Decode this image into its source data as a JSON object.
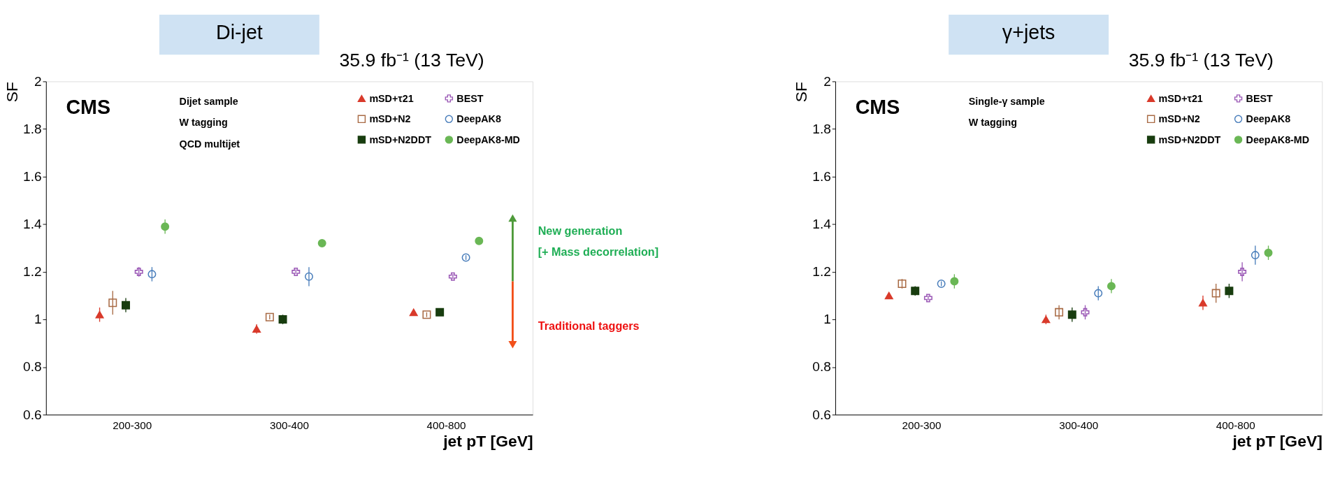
{
  "chart_data": [
    {
      "type": "scatter",
      "title": "Di-jet",
      "subtitle": "35.9 fb⁻¹ (13 TeV)",
      "xlabel": "jet pT [GeV]",
      "ylabel": "SF",
      "categories": [
        "200-300",
        "300-400",
        "400-800"
      ],
      "series": [
        {
          "name": "mSD+τ21",
          "color": "#d93a2b",
          "marker": "triangle",
          "values": [
            1.02,
            0.96,
            1.03
          ],
          "errors": [
            0.03,
            0.02,
            0.01
          ]
        },
        {
          "name": "mSD+N2",
          "color": "#a86a44",
          "marker": "square",
          "values": [
            1.07,
            1.01,
            1.02
          ],
          "errors": [
            0.05,
            0.01,
            0.01
          ]
        },
        {
          "name": "mSD+N2DDT",
          "color": "#183d0f",
          "marker": "square",
          "values": [
            1.06,
            1.0,
            1.03
          ],
          "errors": [
            0.03,
            0.02,
            0.01
          ]
        },
        {
          "name": "BEST",
          "color": "#9b59b6",
          "marker": "cross",
          "values": [
            1.2,
            1.2,
            1.18
          ],
          "errors": [
            0.02,
            0.01,
            0.01
          ]
        },
        {
          "name": "DeepAK8",
          "color": "#4a7ebb",
          "marker": "circle",
          "values": [
            1.19,
            1.18,
            1.26
          ],
          "errors": [
            0.03,
            0.04,
            0.01
          ]
        },
        {
          "name": "DeepAK8-MD",
          "color": "#6ab755",
          "marker": "circle",
          "values": [
            1.39,
            1.32,
            1.33
          ],
          "errors": [
            0.03,
            0.01,
            0.01
          ]
        }
      ],
      "ylim": [
        0.6,
        2
      ],
      "yticks": [
        0.6,
        0.8,
        1,
        1.2,
        1.4,
        1.6,
        1.8,
        2
      ],
      "grid": false,
      "legend": "top right",
      "annotations": [
        "CMS",
        "Dijet sample",
        "W tagging",
        "QCD multijet",
        "New generation",
        "[+ Mass decorrelation]",
        "Traditional taggers"
      ]
    },
    {
      "type": "scatter",
      "title": "γ+jets",
      "subtitle": "35.9 fb⁻¹ (13 TeV)",
      "xlabel": "jet pT [GeV]",
      "ylabel": "SF",
      "categories": [
        "200-300",
        "300-400",
        "400-800"
      ],
      "series": [
        {
          "name": "mSD+τ21",
          "color": "#d93a2b",
          "marker": "triangle",
          "values": [
            1.1,
            1.0,
            1.07
          ],
          "errors": [
            0.01,
            0.02,
            0.03
          ]
        },
        {
          "name": "mSD+N2",
          "color": "#a86a44",
          "marker": "square",
          "values": [
            1.15,
            1.03,
            1.11
          ],
          "errors": [
            0.02,
            0.03,
            0.04
          ]
        },
        {
          "name": "mSD+N2DDT",
          "color": "#183d0f",
          "marker": "square",
          "values": [
            1.12,
            1.02,
            1.12
          ],
          "errors": [
            0.02,
            0.03,
            0.03
          ]
        },
        {
          "name": "BEST",
          "color": "#9b59b6",
          "marker": "cross",
          "values": [
            1.09,
            1.03,
            1.2
          ],
          "errors": [
            0.01,
            0.03,
            0.04
          ]
        },
        {
          "name": "DeepAK8",
          "color": "#4a7ebb",
          "marker": "circle",
          "values": [
            1.15,
            1.11,
            1.27
          ],
          "errors": [
            0.01,
            0.03,
            0.04
          ]
        },
        {
          "name": "DeepAK8-MD",
          "color": "#6ab755",
          "marker": "circle",
          "values": [
            1.16,
            1.14,
            1.28
          ],
          "errors": [
            0.03,
            0.03,
            0.03
          ]
        }
      ],
      "ylim": [
        0.6,
        2
      ],
      "yticks": [
        0.6,
        0.8,
        1,
        1.2,
        1.4,
        1.6,
        1.8,
        2
      ],
      "grid": false,
      "legend": "top right",
      "annotations": [
        "CMS",
        "Single-γ sample",
        "W tagging"
      ]
    }
  ]
}
